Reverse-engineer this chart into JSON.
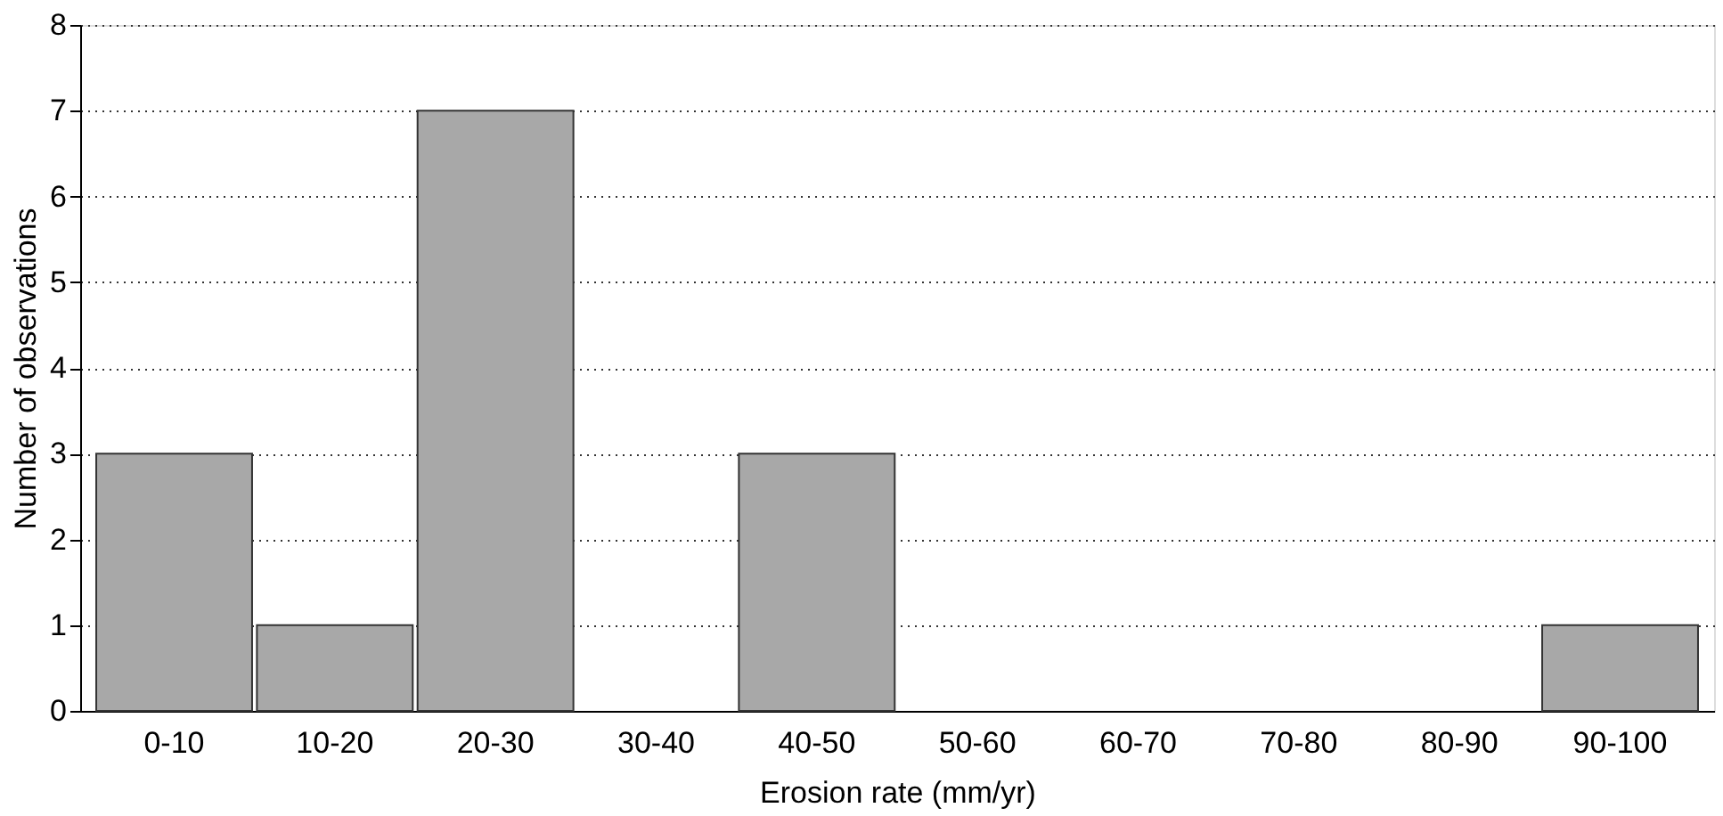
{
  "chart_data": {
    "type": "bar",
    "xlabel": "Erosion rate (mm/yr)",
    "ylabel": "Number of observations",
    "categories": [
      "0-10",
      "10-20",
      "20-30",
      "30-40",
      "40-50",
      "50-60",
      "60-70",
      "70-80",
      "80-90",
      "90-100"
    ],
    "values": [
      3,
      1,
      7,
      0,
      3,
      0,
      0,
      0,
      0,
      1
    ],
    "color": "#a8a8a8",
    "ylim": [
      0,
      8
    ],
    "yticks": [
      0,
      1,
      2,
      3,
      4,
      5,
      6,
      7,
      8
    ],
    "grid": "y"
  }
}
